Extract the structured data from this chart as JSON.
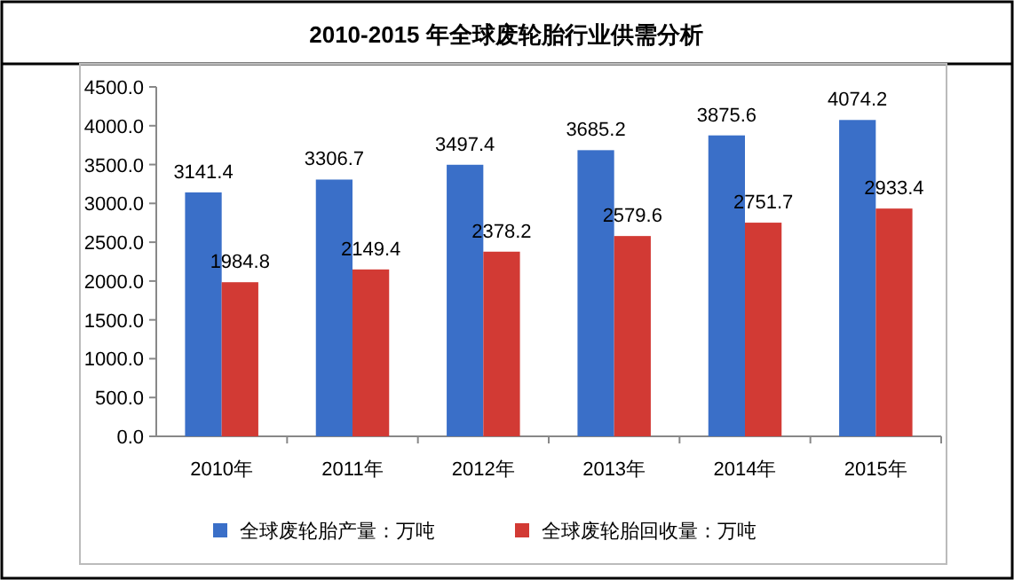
{
  "chart_data": {
    "type": "bar",
    "title": "2010-2015 年全球废轮胎行业供需分析",
    "categories": [
      "2010年",
      "2011年",
      "2012年",
      "2013年",
      "2014年",
      "2015年"
    ],
    "series": [
      {
        "name": "全球废轮胎产量：万吨",
        "color": "#3a6fc8",
        "values": [
          3141.4,
          3306.7,
          3497.4,
          3685.2,
          3875.6,
          4074.2
        ]
      },
      {
        "name": "全球废轮胎回收量：万吨",
        "color": "#d23a34",
        "values": [
          1984.8,
          2149.4,
          2378.2,
          2579.6,
          2751.7,
          2933.4
        ]
      }
    ],
    "ylim": [
      0,
      4500
    ],
    "yticks": [
      {
        "value": 0,
        "label": "0.0"
      },
      {
        "value": 500,
        "label": "500.0"
      },
      {
        "value": 1000,
        "label": "1000.0"
      },
      {
        "value": 1500,
        "label": "1500.0"
      },
      {
        "value": 2000,
        "label": "2000.0"
      },
      {
        "value": 2500,
        "label": "2500.0"
      },
      {
        "value": 3000,
        "label": "3000.0"
      },
      {
        "value": 3500,
        "label": "3500.0"
      },
      {
        "value": 4000,
        "label": "4000.0"
      },
      {
        "value": 4500,
        "label": "4500.0"
      }
    ],
    "data_labels": true,
    "legend": "bottom",
    "grid": false
  }
}
